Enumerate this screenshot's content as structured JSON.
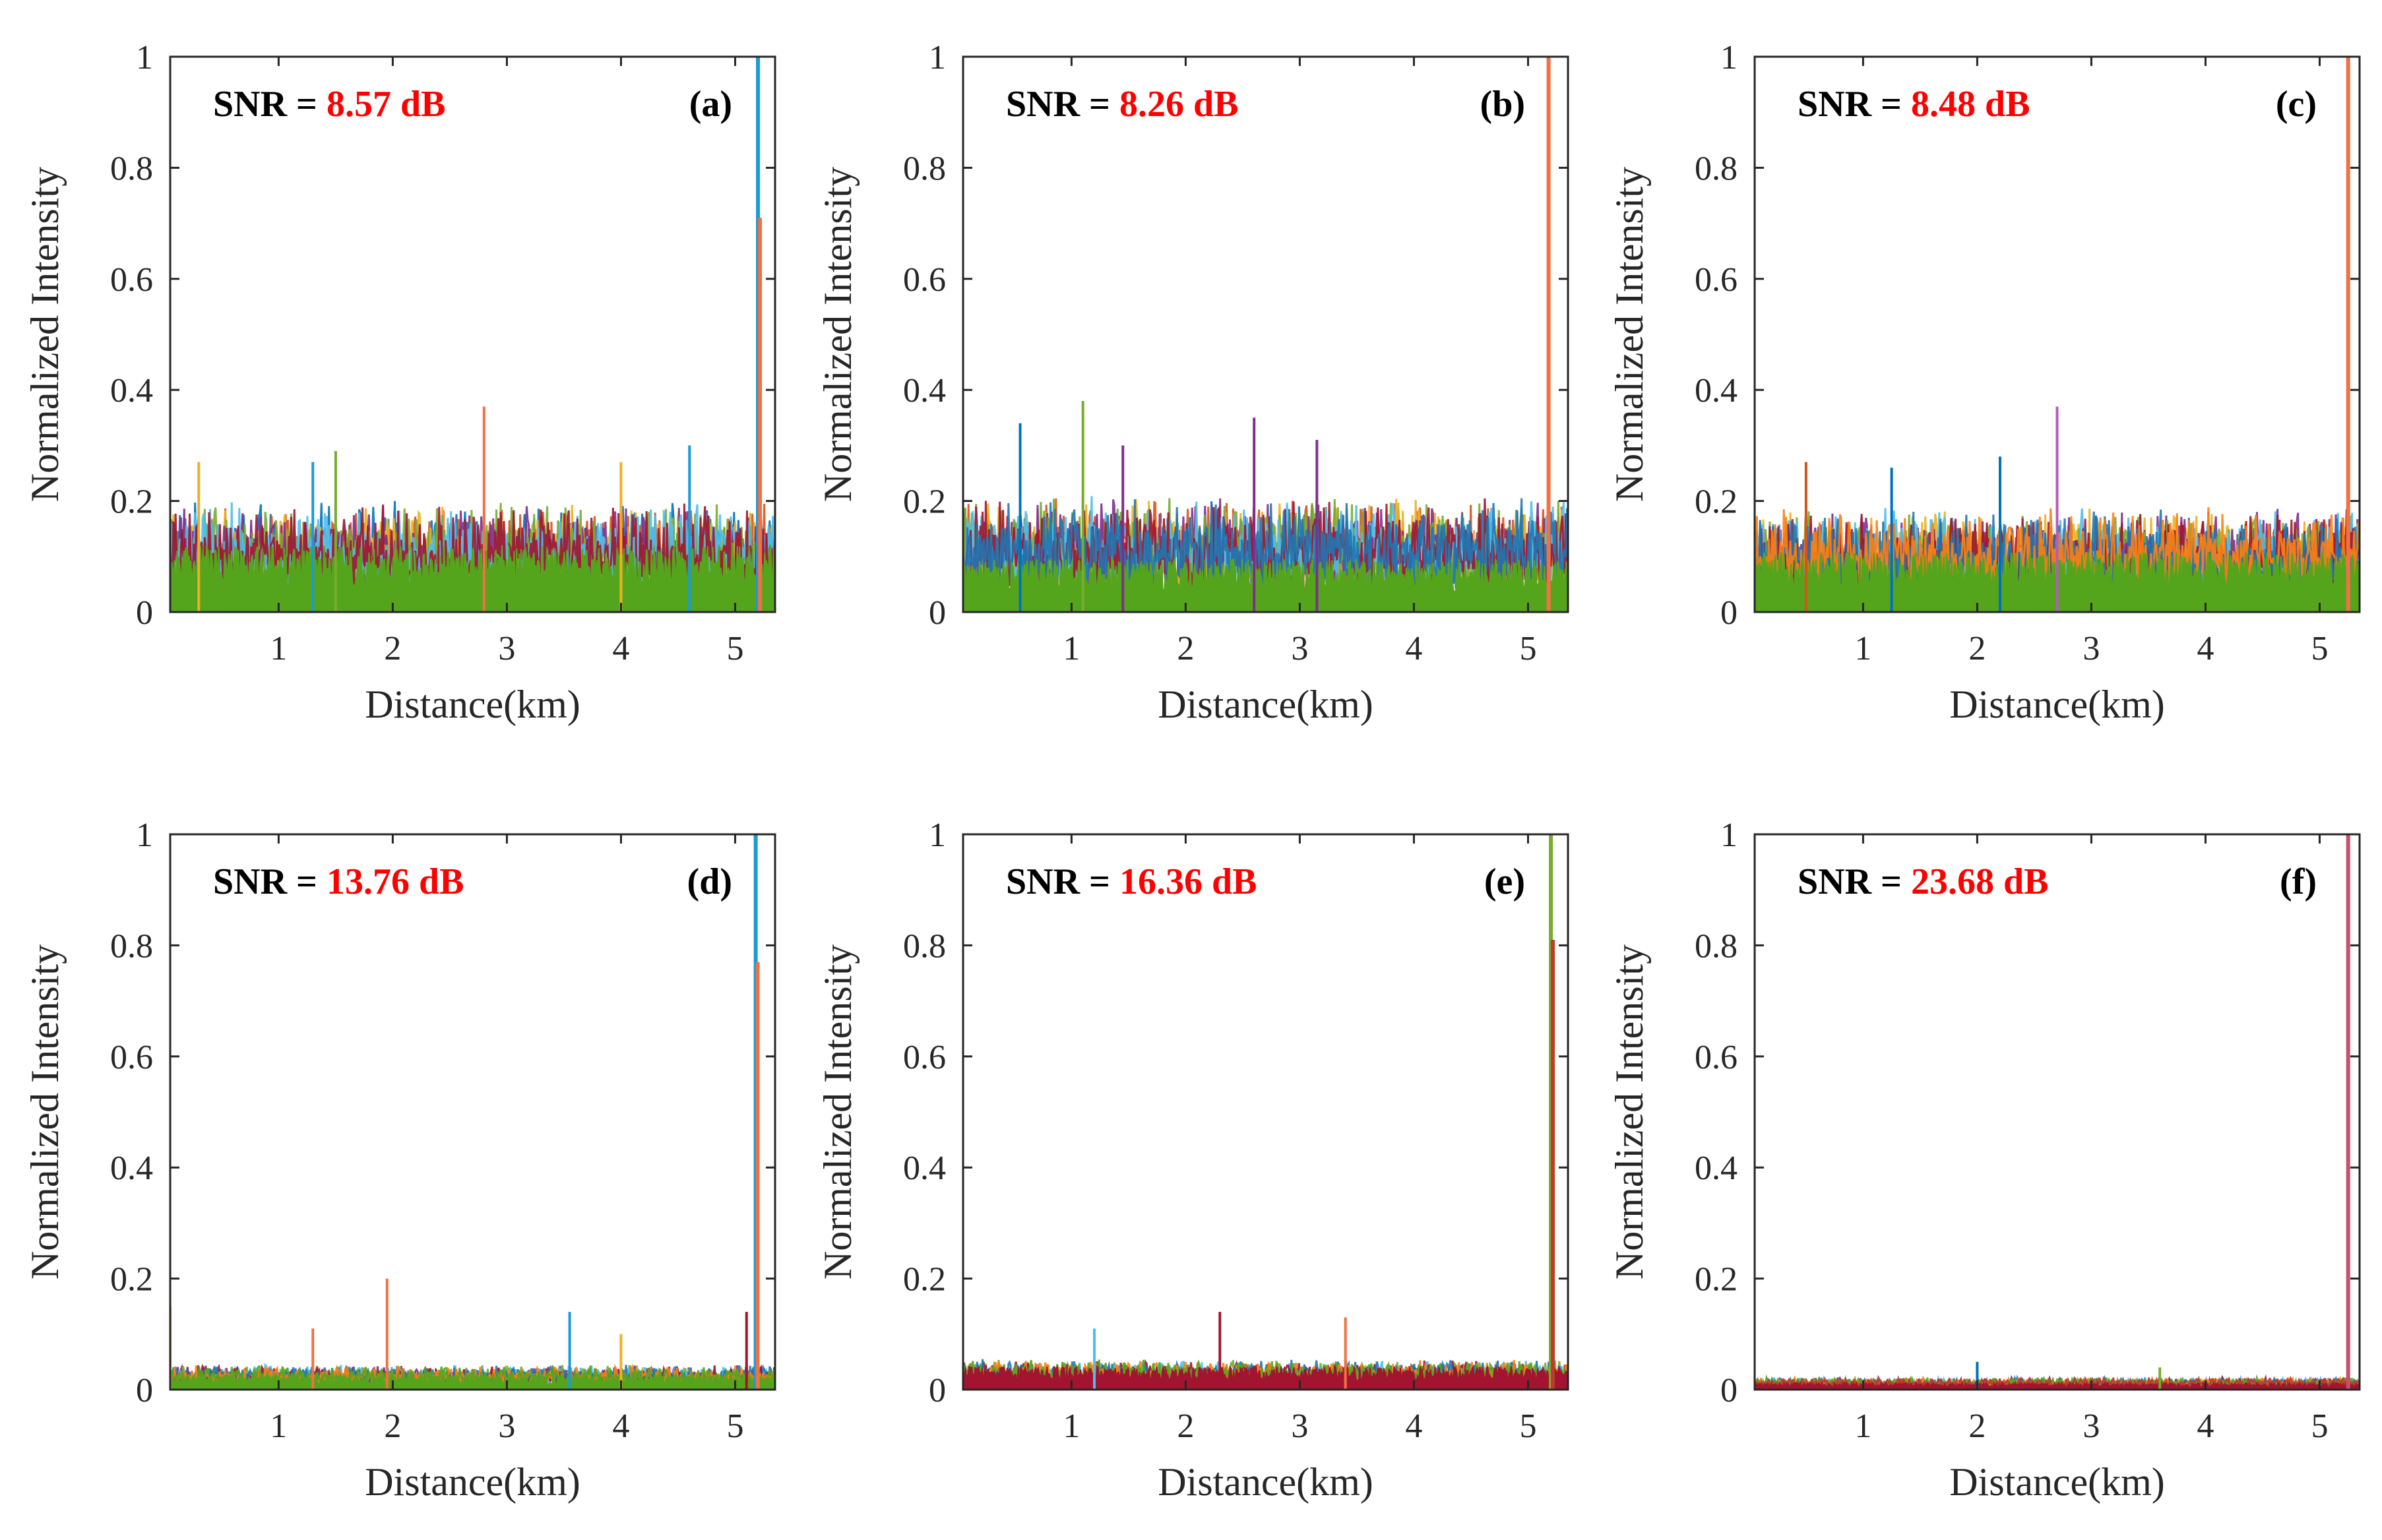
{
  "figure": {
    "panel_order": [
      "a",
      "b",
      "c",
      "d",
      "e",
      "f"
    ],
    "series_colors": [
      "#0072BD",
      "#D95319",
      "#EDB120",
      "#7E2F8E",
      "#77AC30",
      "#4DBEEE",
      "#A2142F",
      "#1F77B4",
      "#FF7F0E",
      "#55A51C",
      "#C0392B"
    ],
    "snr_color": "#FF0000"
  },
  "chart_data": [
    {
      "type": "line",
      "id": "a",
      "tag": "(a)",
      "snr_prefix": "SNR = ",
      "snr_value": "8.57 dB",
      "xlabel": "Distance(km)",
      "ylabel": "Normalized Intensity",
      "xlim": [
        0.05,
        5.35
      ],
      "ylim": [
        0,
        1
      ],
      "xticks": [
        1,
        2,
        3,
        4,
        5
      ],
      "xtick_labels": [
        "1",
        "2",
        "3",
        "4",
        "5"
      ],
      "yticks": [
        0,
        0.2,
        0.4,
        0.6,
        0.8,
        1
      ],
      "ytick_labels": [
        "0",
        "0.2",
        "0.4",
        "0.6",
        "0.8",
        "1"
      ],
      "noise_ceiling": 0.2,
      "base_fill": 0.1,
      "base_fill_color": "#55A51C",
      "series_count": 7,
      "peak": {
        "x": 5.2,
        "series": [
          {
            "color": "#1A9BD7",
            "value": 1.0
          },
          {
            "color": "#F37042",
            "value": 0.71
          }
        ]
      },
      "spikes": [
        {
          "x": 2.8,
          "value": 0.37,
          "color": "#F37042"
        },
        {
          "x": 1.5,
          "value": 0.29,
          "color": "#77AC30"
        },
        {
          "x": 4.6,
          "value": 0.3,
          "color": "#1A9BD7"
        },
        {
          "x": 0.3,
          "value": 0.27,
          "color": "#EDB120"
        },
        {
          "x": 1.3,
          "value": 0.27,
          "color": "#1A9BD7"
        },
        {
          "x": 4.0,
          "value": 0.27,
          "color": "#EDB120"
        }
      ]
    },
    {
      "type": "line",
      "id": "b",
      "tag": "(b)",
      "snr_prefix": "SNR = ",
      "snr_value": "8.26 dB",
      "xlabel": "Distance(km)",
      "ylabel": "Normalized Intensity",
      "xlim": [
        0.05,
        5.35
      ],
      "ylim": [
        0,
        1
      ],
      "xticks": [
        1,
        2,
        3,
        4,
        5
      ],
      "xtick_labels": [
        "1",
        "2",
        "3",
        "4",
        "5"
      ],
      "yticks": [
        0,
        0.2,
        0.4,
        0.6,
        0.8,
        1
      ],
      "ytick_labels": [
        "0",
        "0.2",
        "0.4",
        "0.6",
        "0.8",
        "1"
      ],
      "noise_ceiling": 0.21,
      "base_fill": 0.08,
      "base_fill_color": "#55A51C",
      "series_count": 7,
      "peak": {
        "x": 5.18,
        "series": [
          {
            "color": "#F37042",
            "value": 1.0
          }
        ]
      },
      "spikes": [
        {
          "x": 1.1,
          "value": 0.38,
          "color": "#77AC30"
        },
        {
          "x": 2.6,
          "value": 0.35,
          "color": "#7E2F8E"
        },
        {
          "x": 0.55,
          "value": 0.34,
          "color": "#0072BD"
        },
        {
          "x": 3.15,
          "value": 0.31,
          "color": "#7E2F8E"
        },
        {
          "x": 1.45,
          "value": 0.3,
          "color": "#7E2F8E"
        }
      ]
    },
    {
      "type": "line",
      "id": "c",
      "tag": "(c)",
      "snr_prefix": "SNR = ",
      "snr_value": "8.48 dB",
      "xlabel": "Distance(km)",
      "ylabel": "Normalized Intensity",
      "xlim": [
        0.05,
        5.35
      ],
      "ylim": [
        0,
        1
      ],
      "xticks": [
        1,
        2,
        3,
        4,
        5
      ],
      "xtick_labels": [
        "1",
        "2",
        "3",
        "4",
        "5"
      ],
      "yticks": [
        0,
        0.2,
        0.4,
        0.6,
        0.8,
        1
      ],
      "ytick_labels": [
        "0",
        "0.2",
        "0.4",
        "0.6",
        "0.8",
        "1"
      ],
      "noise_ceiling": 0.19,
      "base_fill": 0.09,
      "base_fill_color": "#55A51C",
      "series_count": 7,
      "peak": {
        "x": 5.25,
        "series": [
          {
            "color": "#F37042",
            "value": 1.0
          }
        ]
      },
      "spikes": [
        {
          "x": 2.7,
          "value": 0.37,
          "color": "#B15BC0"
        },
        {
          "x": 2.2,
          "value": 0.28,
          "color": "#0072BD"
        },
        {
          "x": 0.5,
          "value": 0.27,
          "color": "#D95319"
        },
        {
          "x": 1.25,
          "value": 0.26,
          "color": "#0072BD"
        }
      ]
    },
    {
      "type": "line",
      "id": "d",
      "tag": "(d)",
      "snr_prefix": "SNR = ",
      "snr_value": "13.76 dB",
      "xlabel": "Distance(km)",
      "ylabel": "Normalized Intensity",
      "xlim": [
        0.05,
        5.35
      ],
      "ylim": [
        0,
        1
      ],
      "xticks": [
        1,
        2,
        3,
        4,
        5
      ],
      "xtick_labels": [
        "1",
        "2",
        "3",
        "4",
        "5"
      ],
      "yticks": [
        0,
        0.2,
        0.4,
        0.6,
        0.8,
        1
      ],
      "ytick_labels": [
        "0",
        "0.2",
        "0.4",
        "0.6",
        "0.8",
        "1"
      ],
      "noise_ceiling": 0.045,
      "base_fill": 0.02,
      "base_fill_color": "#55A51C",
      "series_count": 7,
      "peak": {
        "x": 5.18,
        "series": [
          {
            "color": "#1A9BD7",
            "value": 1.0
          },
          {
            "color": "#F37042",
            "value": 0.77
          }
        ]
      },
      "spikes": [
        {
          "x": 1.95,
          "value": 0.2,
          "color": "#F37042"
        },
        {
          "x": 3.55,
          "value": 0.14,
          "color": "#1A9BD7"
        },
        {
          "x": 0.05,
          "value": 0.15,
          "color": "#EDB120"
        },
        {
          "x": 1.3,
          "value": 0.11,
          "color": "#F37042"
        },
        {
          "x": 5.1,
          "value": 0.14,
          "color": "#A2142F"
        },
        {
          "x": 4.0,
          "value": 0.1,
          "color": "#EDB120"
        }
      ]
    },
    {
      "type": "line",
      "id": "e",
      "tag": "(e)",
      "snr_prefix": "SNR = ",
      "snr_value": "16.36 dB",
      "xlabel": "Distance(km)",
      "ylabel": "Normalized Intensity",
      "xlim": [
        0.05,
        5.35
      ],
      "ylim": [
        0,
        1
      ],
      "xticks": [
        1,
        2,
        3,
        4,
        5
      ],
      "xtick_labels": [
        "1",
        "2",
        "3",
        "4",
        "5"
      ],
      "yticks": [
        0,
        0.2,
        0.4,
        0.6,
        0.8,
        1
      ],
      "ytick_labels": [
        "0",
        "0.2",
        "0.4",
        "0.6",
        "0.8",
        "1"
      ],
      "noise_ceiling": 0.055,
      "base_fill": 0.035,
      "base_fill_color": "#A2142F",
      "series_count": 6,
      "peak": {
        "x": 5.2,
        "series": [
          {
            "color": "#77AC30",
            "value": 1.0
          },
          {
            "color": "#C0392B",
            "value": 0.81
          }
        ]
      },
      "spikes": [
        {
          "x": 2.3,
          "value": 0.14,
          "color": "#A2142F"
        },
        {
          "x": 3.4,
          "value": 0.13,
          "color": "#F37042"
        },
        {
          "x": 1.2,
          "value": 0.11,
          "color": "#4DBEEE"
        }
      ]
    },
    {
      "type": "line",
      "id": "f",
      "tag": "(f)",
      "snr_prefix": "SNR = ",
      "snr_value": "23.68 dB",
      "xlabel": "Distance(km)",
      "ylabel": "Normalized Intensity",
      "xlim": [
        0.05,
        5.35
      ],
      "ylim": [
        0,
        1
      ],
      "xticks": [
        1,
        2,
        3,
        4,
        5
      ],
      "xtick_labels": [
        "1",
        "2",
        "3",
        "4",
        "5"
      ],
      "yticks": [
        0,
        0.2,
        0.4,
        0.6,
        0.8,
        1
      ],
      "ytick_labels": [
        "0",
        "0.2",
        "0.4",
        "0.6",
        "0.8",
        "1"
      ],
      "noise_ceiling": 0.022,
      "base_fill": 0.01,
      "base_fill_color": "#A2142F",
      "series_count": 6,
      "peak": {
        "x": 5.25,
        "series": [
          {
            "color": "#C94F6D",
            "value": 1.0
          }
        ]
      },
      "spikes": [
        {
          "x": 2.0,
          "value": 0.05,
          "color": "#0072BD"
        },
        {
          "x": 3.6,
          "value": 0.04,
          "color": "#77AC30"
        }
      ]
    }
  ]
}
